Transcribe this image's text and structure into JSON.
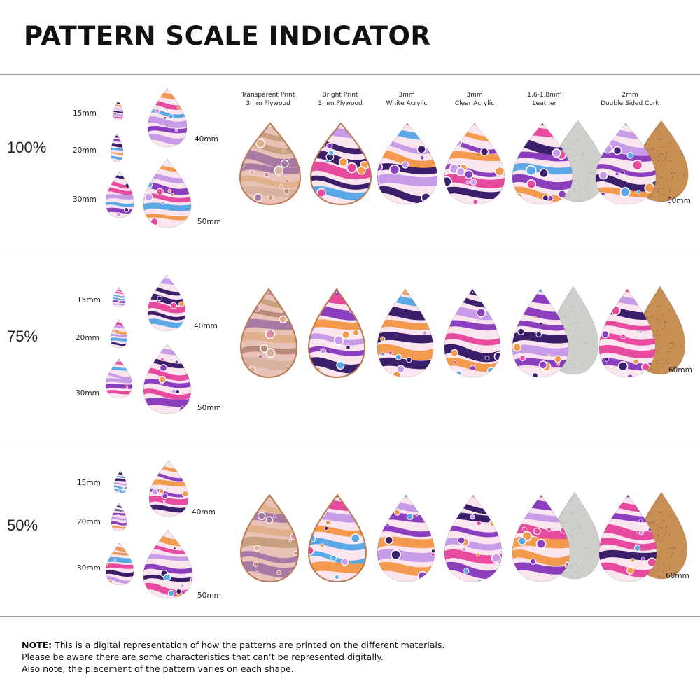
{
  "title": "PATTERN SCALE INDICATOR",
  "materials": [
    {
      "line1": "Transparent Print",
      "line2": "3mm Plywood",
      "finish": "transparent",
      "backing": "none"
    },
    {
      "line1": "Bright Print",
      "line2": "3mm Plywood",
      "finish": "bright",
      "backing": "none"
    },
    {
      "line1": "3mm",
      "line2": "White Acrylic",
      "finish": "bright",
      "backing": "none"
    },
    {
      "line1": "3mm",
      "line2": "Clear Acrylic",
      "finish": "bright",
      "backing": "none"
    },
    {
      "line1": "1.6-1.8mm",
      "line2": "Leather",
      "finish": "bright",
      "backing": "suede"
    },
    {
      "line1": "2mm",
      "line2": "Double Sided Cork",
      "finish": "bright",
      "backing": "cork"
    }
  ],
  "size_labels": [
    "15mm",
    "20mm",
    "30mm",
    "40mm",
    "50mm"
  ],
  "large_size_label": "60mm",
  "scales": [
    {
      "label": "100%"
    },
    {
      "label": "75%"
    },
    {
      "label": "50%"
    }
  ],
  "colors": {
    "pink": "#e84aa0",
    "purple": "#8b3fbf",
    "deep_purple": "#3b1f6b",
    "orange": "#f39a4e",
    "blue": "#5aa9e6",
    "lavender": "#c79be8",
    "cream": "#fbe6ef",
    "wood": "#b97a55",
    "cork": "#c88f55",
    "suede": "#cfcfcc"
  },
  "note": {
    "bold": "NOTE:",
    "line1": " This is a digital representation of how the patterns are printed on the different materials.",
    "line2": "Please be aware there are some characteristics that can’t be represented digitally.",
    "line3": "Also note, the placement of the pattern varies on each shape."
  }
}
